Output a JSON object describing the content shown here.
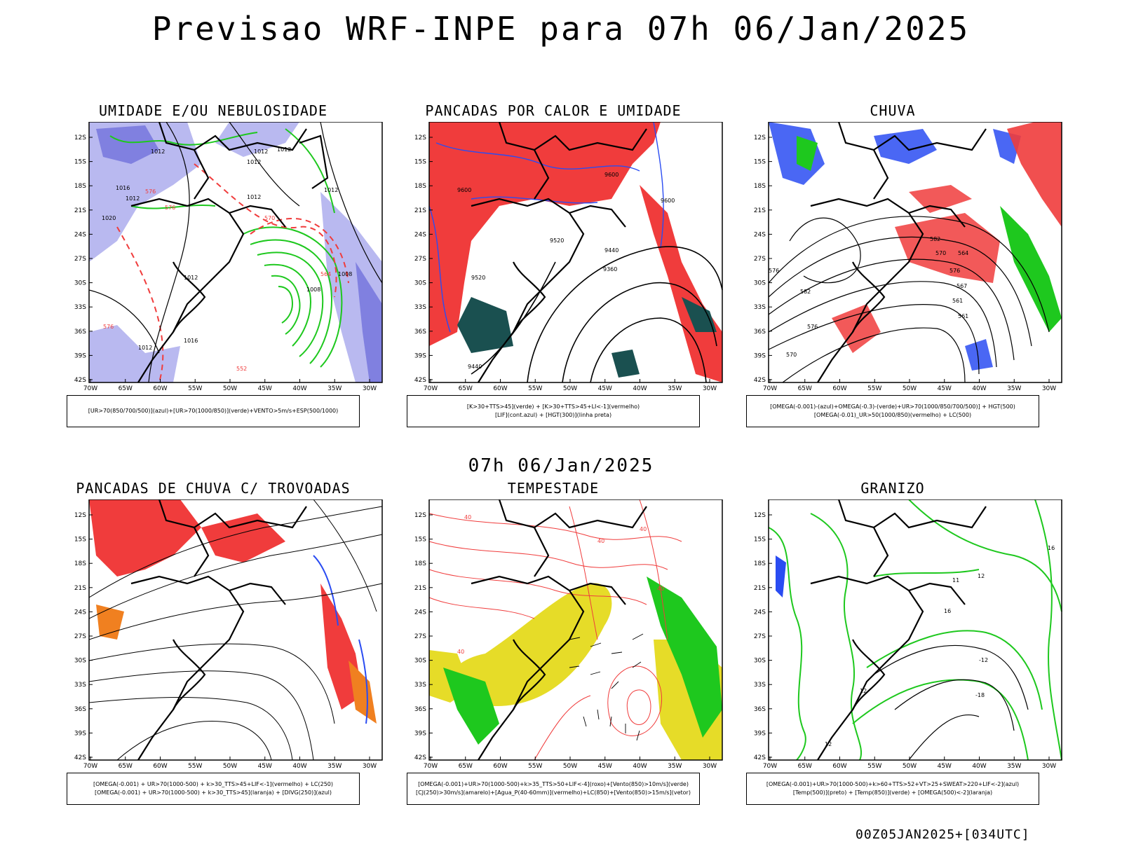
{
  "title": "Previsao WRF-INPE  para 07h 06/Jan/2025",
  "mid_title": "07h 06/Jan/2025",
  "footer": "00Z05JAN2025+[034UTC]",
  "axes": {
    "lat_labels": [
      "12S",
      "15S",
      "18S",
      "21S",
      "24S",
      "27S",
      "30S",
      "33S",
      "36S",
      "39S",
      "42S"
    ],
    "lon_labels": [
      "70W",
      "65W",
      "60W",
      "55W",
      "50W",
      "45W",
      "40W",
      "35W",
      "30W"
    ]
  },
  "colors": {
    "blue_light": "#b9b9f0",
    "blue_mid": "#8080e0",
    "blue_dark": "#2a4cf2",
    "green": "#1ec81e",
    "red": "#f03c3c",
    "darkgreen": "#1a5050",
    "yellow": "#e6dc28",
    "orange": "#f08020",
    "black": "#000000"
  },
  "panels": [
    {
      "title": "UMIDADE E/OU NEBULOSIDADE",
      "caption_lines": [
        "[UR>70(850/700/500)](azul)+[UR>70(1000/850)](verde)+VENTO>5m/s+ESP(500/1000)"
      ],
      "contour_labels": [
        "1012",
        "1012",
        "1012",
        "1012",
        "1016",
        "1012",
        "1020",
        "1012",
        "1008",
        "1012",
        "1008",
        "1012",
        "1016",
        "1012",
        "576",
        "576",
        "570",
        "576",
        "564",
        "552"
      ]
    },
    {
      "title": "PANCADAS POR CALOR E UMIDADE",
      "caption_lines": [
        "[K>30+TTS>45](verde) + [K>30+TTS>45+LI<-1](vermelho)",
        "[LIF](cont.azul) + [HGT(300)](linha preta)"
      ],
      "contour_labels": [
        "9600",
        "9600",
        "9520",
        "9440",
        "9360",
        "9600",
        "9440",
        "9520"
      ]
    },
    {
      "title": "CHUVA",
      "caption_lines": [
        "[OMEGA(-0.001)-(azul)+OMEGA(-0.3)-(verde)+UR>70(1000/850/700/500)] + HGT(500)",
        "[OMEGA(-0.01)_UR>50(1000/850)(vermelho) + LC(500)"
      ],
      "contour_labels": [
        "582",
        "576",
        "570",
        "564",
        "582",
        "576",
        "570",
        "567",
        "561",
        "561",
        "576"
      ]
    },
    {
      "title": "PANCADAS DE CHUVA C/ TROVOADAS",
      "caption_lines": [
        "[OMEGA(-0.001) + UR>70(1000-500) + k>30_TTS>45+LIF<-1](vermelho) + LC(250)",
        "[OMEGA(-0.001) + UR>70(1000-500) + k>30_TTS>45](laranja) + [DIVG(250)](azul)"
      ],
      "contour_labels": []
    },
    {
      "title": "TEMPESTADE",
      "caption_lines": [
        "[OMEGA(-0.001)+UR>70(1000-500)+k>35_TTS>50+LIF<-4](roxo)+[Vento(850)>10m/s](verde)",
        "[CJ(250)>30m/s](amarelo)+[Agua_P(40-60mm)](vermelho)+LC(850)+[Vento(850)>15m/s](vetor)"
      ],
      "contour_labels": [
        "40",
        "40",
        "40",
        "40",
        "40"
      ]
    },
    {
      "title": "GRANIZO",
      "caption_lines": [
        "[OMEGA(-0.001)+UR>70(1000-500)+k>60+TTS>52+VT>25+SWEAT>220+LIF<-2](azul)",
        "[Temp(500)](preto) + [Temp(850)](verde) + [OMEGA(500)<-2](laranja)"
      ],
      "contour_labels": [
        "-12",
        "-18",
        "12",
        "12",
        "16",
        "11",
        "12",
        "16"
      ]
    }
  ]
}
